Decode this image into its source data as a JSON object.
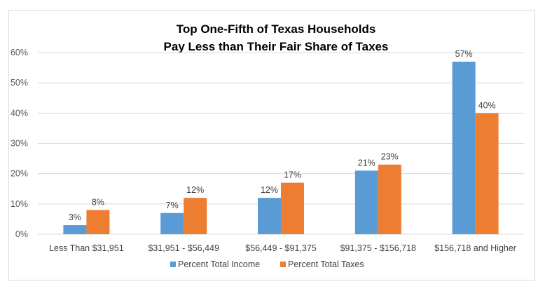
{
  "chart_data": {
    "type": "bar",
    "title": [
      "Top One-Fifth of Texas Households",
      "Pay Less than Their Fair Share of Taxes"
    ],
    "categories": [
      "Less Than $31,951",
      "$31,951 - $56,449",
      "$56,449 - $91,375",
      "$91,375 - $156,718",
      "$156,718 and Higher"
    ],
    "series": [
      {
        "name": "Percent Total Income",
        "values": [
          3,
          7,
          12,
          21,
          57
        ],
        "labels": [
          "3%",
          "7%",
          "12%",
          "21%",
          "57%"
        ],
        "color": "#5b9bd5"
      },
      {
        "name": "Percent Total Taxes",
        "values": [
          8,
          12,
          17,
          23,
          40
        ],
        "labels": [
          "8%",
          "12%",
          "17%",
          "23%",
          "40%"
        ],
        "color": "#ed7d31"
      }
    ],
    "yticks": [
      "0%",
      "10%",
      "20%",
      "30%",
      "40%",
      "50%",
      "60%"
    ],
    "ylim": [
      0,
      60
    ],
    "xlabel": "",
    "ylabel": "",
    "grid": true,
    "legend": "bottom"
  }
}
